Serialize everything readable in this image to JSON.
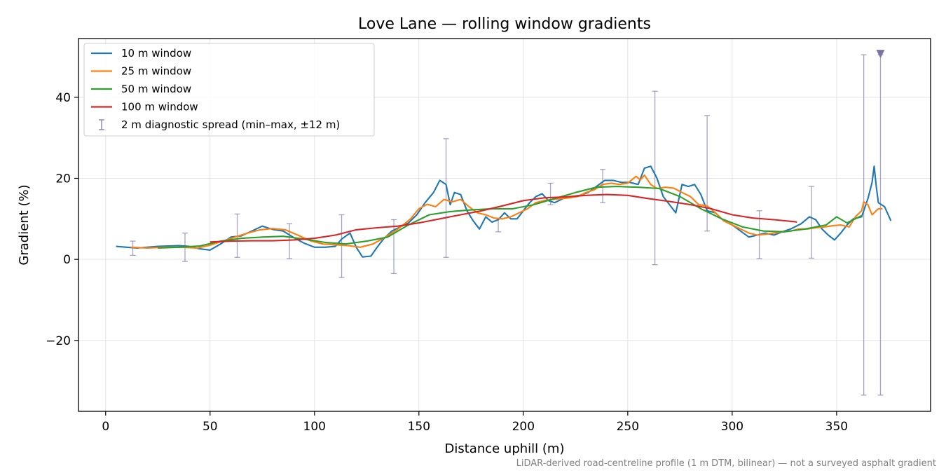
{
  "chart_data": {
    "type": "line",
    "title": "Love Lane — rolling window gradients",
    "xlabel": "Distance uphill (m)",
    "ylabel": "Gradient (%)",
    "caption": "LiDAR-derived road-centreline profile (1 m DTM, bilinear) — not a surveyed asphalt gradient",
    "xlim": [
      -13,
      395
    ],
    "ylim": [
      -37.5,
      54.5
    ],
    "xticks": [
      0,
      50,
      100,
      150,
      200,
      250,
      300,
      350
    ],
    "yticks": [
      -20,
      0,
      20,
      40
    ],
    "ytick_labels": [
      "−20",
      "0",
      "20",
      "40"
    ],
    "grid": true,
    "legend_position": "upper-left",
    "series": [
      {
        "name": "10 m window",
        "color": "#1f77b4",
        "points": [
          [
            5,
            3.2
          ],
          [
            10,
            3.0
          ],
          [
            15,
            2.8
          ],
          [
            20,
            3.0
          ],
          [
            25,
            3.2
          ],
          [
            30,
            3.3
          ],
          [
            35,
            3.4
          ],
          [
            40,
            3.2
          ],
          [
            45,
            2.6
          ],
          [
            50,
            2.3
          ],
          [
            55,
            3.8
          ],
          [
            60,
            5.5
          ],
          [
            65,
            5.8
          ],
          [
            70,
            7.0
          ],
          [
            75,
            8.2
          ],
          [
            80,
            7.4
          ],
          [
            85,
            7.0
          ],
          [
            90,
            5.4
          ],
          [
            95,
            4.0
          ],
          [
            100,
            3.0
          ],
          [
            105,
            3.0
          ],
          [
            110,
            3.2
          ],
          [
            113,
            5.0
          ],
          [
            117,
            6.5
          ],
          [
            120,
            3.0
          ],
          [
            123,
            0.6
          ],
          [
            127,
            0.8
          ],
          [
            130,
            3.0
          ],
          [
            133,
            5.0
          ],
          [
            137,
            7.0
          ],
          [
            141,
            8.0
          ],
          [
            145,
            9.0
          ],
          [
            149,
            11.0
          ],
          [
            153,
            14.0
          ],
          [
            157,
            16.5
          ],
          [
            160,
            19.5
          ],
          [
            163,
            18.5
          ],
          [
            165,
            13.5
          ],
          [
            167,
            16.5
          ],
          [
            170,
            16.0
          ],
          [
            173,
            12.0
          ],
          [
            176,
            9.5
          ],
          [
            179,
            7.5
          ],
          [
            182,
            10.5
          ],
          [
            185,
            9.2
          ],
          [
            188,
            9.8
          ],
          [
            191,
            11.5
          ],
          [
            194,
            10.0
          ],
          [
            197,
            10.0
          ],
          [
            200,
            12.0
          ],
          [
            203,
            14.0
          ],
          [
            206,
            15.5
          ],
          [
            209,
            16.2
          ],
          [
            212,
            14.5
          ],
          [
            215,
            14.0
          ],
          [
            219,
            15.0
          ],
          [
            223,
            15.5
          ],
          [
            227,
            15.8
          ],
          [
            231,
            16.5
          ],
          [
            235,
            18.0
          ],
          [
            239,
            19.5
          ],
          [
            243,
            19.5
          ],
          [
            247,
            19.0
          ],
          [
            251,
            19.0
          ],
          [
            255,
            18.5
          ],
          [
            258,
            22.5
          ],
          [
            261,
            23.0
          ],
          [
            264,
            20.0
          ],
          [
            267,
            15.5
          ],
          [
            270,
            13.5
          ],
          [
            273,
            11.5
          ],
          [
            276,
            18.5
          ],
          [
            279,
            18.0
          ],
          [
            282,
            18.5
          ],
          [
            285,
            16.0
          ],
          [
            288,
            12.0
          ],
          [
            292,
            11.5
          ],
          [
            296,
            9.5
          ],
          [
            300,
            8.5
          ],
          [
            304,
            7.0
          ],
          [
            308,
            5.5
          ],
          [
            312,
            6.0
          ],
          [
            316,
            6.5
          ],
          [
            320,
            6.0
          ],
          [
            324,
            6.8
          ],
          [
            328,
            7.5
          ],
          [
            333,
            8.8
          ],
          [
            337,
            10.5
          ],
          [
            340,
            9.8
          ],
          [
            343,
            7.5
          ],
          [
            346,
            6.0
          ],
          [
            349,
            4.8
          ],
          [
            352,
            6.5
          ],
          [
            355,
            8.5
          ],
          [
            358,
            10.0
          ],
          [
            362,
            10.5
          ],
          [
            365,
            15.0
          ],
          [
            367,
            19.0
          ],
          [
            368,
            23.0
          ],
          [
            369,
            18.0
          ],
          [
            370,
            14.0
          ],
          [
            373,
            13.0
          ],
          [
            376,
            9.5
          ]
        ]
      },
      {
        "name": "25 m window",
        "color": "#ff7f0e",
        "points": [
          [
            12,
            3.0
          ],
          [
            20,
            2.8
          ],
          [
            28,
            3.0
          ],
          [
            36,
            3.0
          ],
          [
            44,
            2.8
          ],
          [
            50,
            3.5
          ],
          [
            56,
            4.5
          ],
          [
            62,
            5.5
          ],
          [
            68,
            6.5
          ],
          [
            74,
            7.3
          ],
          [
            80,
            7.6
          ],
          [
            86,
            7.3
          ],
          [
            92,
            6.0
          ],
          [
            98,
            4.6
          ],
          [
            104,
            3.8
          ],
          [
            110,
            3.6
          ],
          [
            116,
            3.4
          ],
          [
            122,
            3.0
          ],
          [
            128,
            3.8
          ],
          [
            134,
            5.5
          ],
          [
            140,
            7.5
          ],
          [
            146,
            10.0
          ],
          [
            150,
            12.5
          ],
          [
            154,
            13.6
          ],
          [
            158,
            13.0
          ],
          [
            162,
            14.8
          ],
          [
            166,
            14.2
          ],
          [
            170,
            14.8
          ],
          [
            174,
            13.0
          ],
          [
            178,
            11.5
          ],
          [
            182,
            11.0
          ],
          [
            186,
            10.2
          ],
          [
            190,
            10.0
          ],
          [
            194,
            10.5
          ],
          [
            198,
            11.5
          ],
          [
            202,
            12.5
          ],
          [
            206,
            14.0
          ],
          [
            210,
            14.5
          ],
          [
            214,
            14.8
          ],
          [
            218,
            15.0
          ],
          [
            222,
            15.2
          ],
          [
            226,
            15.5
          ],
          [
            230,
            16.5
          ],
          [
            234,
            17.2
          ],
          [
            238,
            18.5
          ],
          [
            242,
            18.8
          ],
          [
            246,
            18.5
          ],
          [
            250,
            18.8
          ],
          [
            254,
            20.5
          ],
          [
            256,
            19.6
          ],
          [
            258,
            20.8
          ],
          [
            261,
            18.5
          ],
          [
            264,
            17.5
          ],
          [
            268,
            17.8
          ],
          [
            272,
            17.6
          ],
          [
            276,
            16.5
          ],
          [
            280,
            15.5
          ],
          [
            284,
            13.5
          ],
          [
            288,
            13.2
          ],
          [
            292,
            11.5
          ],
          [
            296,
            9.5
          ],
          [
            300,
            8.5
          ],
          [
            304,
            7.5
          ],
          [
            308,
            6.5
          ],
          [
            312,
            6.0
          ],
          [
            316,
            6.2
          ],
          [
            320,
            6.5
          ],
          [
            324,
            6.8
          ],
          [
            328,
            7.0
          ],
          [
            332,
            7.5
          ],
          [
            336,
            7.5
          ],
          [
            340,
            7.8
          ],
          [
            344,
            8.0
          ],
          [
            348,
            8.3
          ],
          [
            352,
            8.5
          ],
          [
            356,
            8.0
          ],
          [
            359,
            10.5
          ],
          [
            362,
            12.0
          ],
          [
            363,
            14.2
          ],
          [
            365,
            13.5
          ],
          [
            367,
            11.0
          ],
          [
            370,
            12.5
          ],
          [
            372,
            12.5
          ]
        ]
      },
      {
        "name": "50 m window",
        "color": "#2ca02c",
        "points": [
          [
            25,
            2.8
          ],
          [
            35,
            3.0
          ],
          [
            45,
            3.3
          ],
          [
            55,
            4.5
          ],
          [
            65,
            5.2
          ],
          [
            75,
            5.5
          ],
          [
            85,
            5.7
          ],
          [
            95,
            5.0
          ],
          [
            105,
            4.2
          ],
          [
            115,
            3.8
          ],
          [
            125,
            4.5
          ],
          [
            135,
            5.5
          ],
          [
            145,
            8.5
          ],
          [
            155,
            11.0
          ],
          [
            165,
            11.8
          ],
          [
            175,
            12.2
          ],
          [
            185,
            12.5
          ],
          [
            195,
            12.5
          ],
          [
            205,
            13.5
          ],
          [
            215,
            15.0
          ],
          [
            225,
            16.5
          ],
          [
            235,
            17.8
          ],
          [
            245,
            18.0
          ],
          [
            255,
            17.8
          ],
          [
            265,
            17.5
          ],
          [
            275,
            15.5
          ],
          [
            285,
            12.5
          ],
          [
            295,
            10.0
          ],
          [
            305,
            8.0
          ],
          [
            315,
            7.0
          ],
          [
            325,
            6.8
          ],
          [
            335,
            7.5
          ],
          [
            345,
            8.5
          ],
          [
            350,
            10.5
          ],
          [
            355,
            9.0
          ],
          [
            362,
            10.8
          ]
        ]
      },
      {
        "name": "100 m window",
        "color": "#d62728",
        "points": [
          [
            50,
            4.3
          ],
          [
            60,
            4.5
          ],
          [
            70,
            4.6
          ],
          [
            80,
            4.6
          ],
          [
            90,
            4.8
          ],
          [
            100,
            5.2
          ],
          [
            110,
            6.0
          ],
          [
            120,
            7.3
          ],
          [
            130,
            7.8
          ],
          [
            140,
            8.2
          ],
          [
            150,
            9.0
          ],
          [
            160,
            10.0
          ],
          [
            170,
            11.0
          ],
          [
            180,
            12.0
          ],
          [
            190,
            13.2
          ],
          [
            200,
            14.5
          ],
          [
            210,
            15.2
          ],
          [
            220,
            15.4
          ],
          [
            230,
            15.8
          ],
          [
            240,
            16.0
          ],
          [
            250,
            15.8
          ],
          [
            260,
            15.0
          ],
          [
            270,
            14.3
          ],
          [
            280,
            13.5
          ],
          [
            290,
            12.5
          ],
          [
            300,
            11.0
          ],
          [
            310,
            10.2
          ],
          [
            320,
            9.8
          ],
          [
            330,
            9.3
          ],
          [
            331,
            9.2
          ]
        ]
      },
      {
        "name": "2 m diagnostic spread (min–max, ±12 m)",
        "color": "#8a84b0",
        "kind": "errorbar",
        "ranges": [
          [
            13,
            1.0,
            4.5
          ],
          [
            38,
            -0.5,
            6.5
          ],
          [
            63,
            0.5,
            11.2
          ],
          [
            88,
            0.2,
            8.8
          ],
          [
            113,
            -4.5,
            11.0
          ],
          [
            138,
            -3.5,
            9.8
          ],
          [
            163,
            0.5,
            29.8
          ],
          [
            188,
            6.8,
            10.2
          ],
          [
            213,
            13.5,
            18.8
          ],
          [
            238,
            14.0,
            22.2
          ],
          [
            263,
            -1.3,
            41.5
          ],
          [
            288,
            7.0,
            35.5
          ],
          [
            313,
            0.2,
            12.0
          ],
          [
            338,
            0.3,
            18.0
          ],
          [
            363,
            -33.5,
            50.5
          ],
          [
            371,
            -33.5,
            50.5
          ]
        ],
        "clipped_marker": {
          "x": 371,
          "y": 50.5
        }
      }
    ]
  }
}
